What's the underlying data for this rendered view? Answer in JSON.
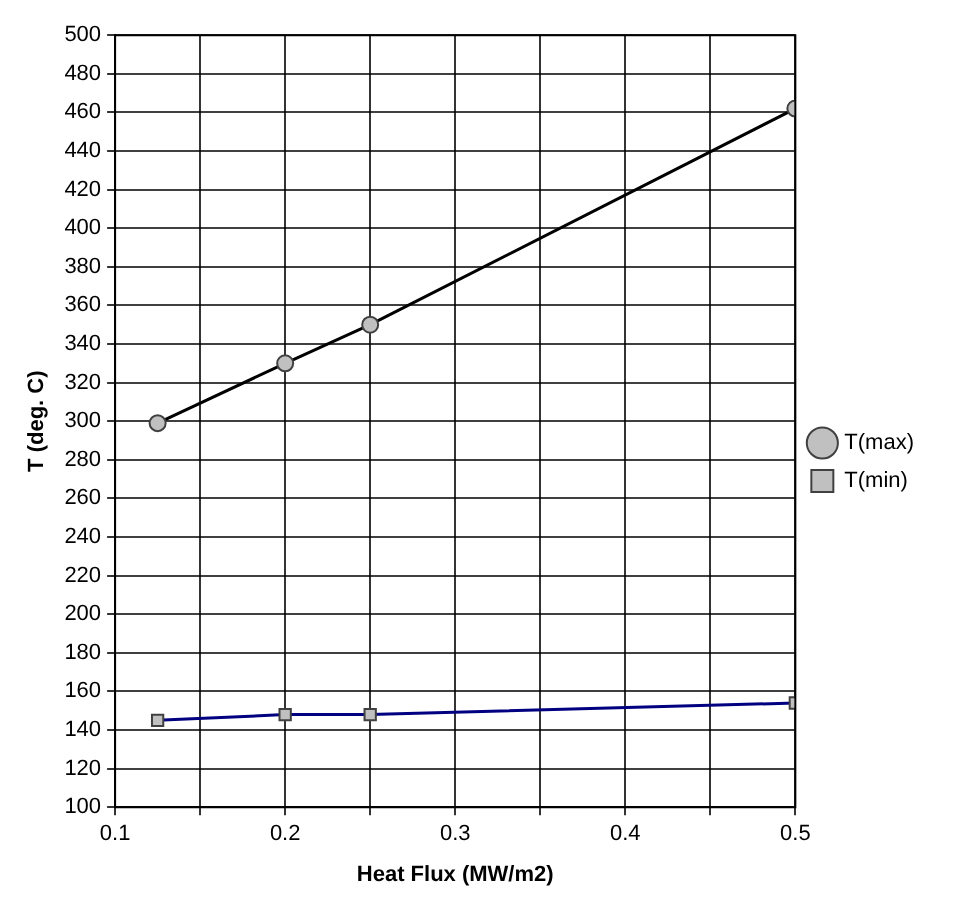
{
  "chart_data": {
    "type": "line",
    "xlabel": "Heat Flux (MW/m2)",
    "ylabel": "T (deg. C)",
    "x": [
      0.125,
      0.2,
      0.25,
      0.5
    ],
    "series": [
      {
        "name": "T(max)",
        "color": "#000000",
        "marker": "circle",
        "values": [
          299,
          330,
          350,
          462
        ]
      },
      {
        "name": "T(min)",
        "color": "#000080",
        "marker": "square",
        "values": [
          145,
          148,
          148,
          154
        ]
      }
    ],
    "xlim": [
      0.1,
      0.5
    ],
    "xticks": [
      0.1,
      {
        "value": 0.15,
        "label": null
      },
      0.2,
      {
        "value": 0.25,
        "label": null
      },
      0.3,
      {
        "value": 0.35,
        "label": null
      },
      0.4,
      {
        "value": 0.45,
        "label": null
      },
      0.5
    ],
    "ylim": [
      100,
      500
    ],
    "yticks": [
      100,
      120,
      140,
      160,
      180,
      200,
      220,
      240,
      260,
      280,
      300,
      320,
      340,
      360,
      380,
      400,
      420,
      440,
      460,
      480,
      500
    ],
    "grid": true,
    "legend": "right",
    "line_style": "solid"
  }
}
